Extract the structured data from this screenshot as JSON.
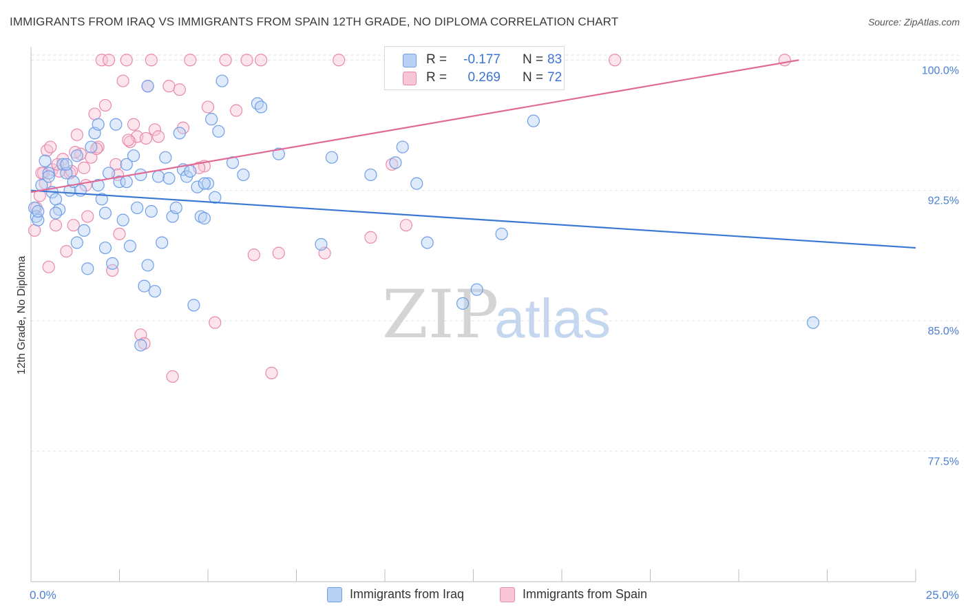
{
  "header": {
    "title": "IMMIGRANTS FROM IRAQ VS IMMIGRANTS FROM SPAIN 12TH GRADE, NO DIPLOMA CORRELATION CHART",
    "source": "Source: ZipAtlas.com"
  },
  "legend": {
    "r_label": "R =",
    "n_label": "N =",
    "rows": [
      {
        "r": "-0.177",
        "n": "83",
        "color": "#6e9ee8",
        "fill": "#b9d0f5"
      },
      {
        "r": "0.269",
        "n": "72",
        "color": "#e88aaa",
        "fill": "#f9c6d7"
      }
    ]
  },
  "watermark": {
    "zip": "ZIP",
    "atlas": "atlas"
  },
  "colors": {
    "iraq_line": "#3a78d4",
    "spain_line": "#e06a93",
    "iraq_point": "#6e9ee8",
    "spain_point": "#e88aaa"
  },
  "chart_data": {
    "type": "scatter",
    "title": "IMMIGRANTS FROM IRAQ VS IMMIGRANTS FROM SPAIN 12TH GRADE, NO DIPLOMA CORRELATION CHART",
    "xlabel": "",
    "ylabel": "12th Grade, No Diploma",
    "xlim": [
      0,
      25
    ],
    "ylim": [
      70.0,
      101.0
    ],
    "x_tick_labels": [
      "0.0%",
      "25.0%"
    ],
    "y_ticks": [
      100.0,
      92.5,
      85.0,
      77.5
    ],
    "y_tick_labels": [
      "100.0%",
      "92.5%",
      "85.0%",
      "77.5%"
    ],
    "grid": true,
    "legend_position": "bottom",
    "series": [
      {
        "name": "Immigrants from Iraq",
        "trend": {
          "x": [
            0,
            25
          ],
          "y": [
            92.5,
            89.2
          ]
        },
        "points": [
          [
            0.1,
            91.5
          ],
          [
            0.15,
            91.0
          ],
          [
            0.2,
            90.8
          ],
          [
            0.3,
            92.8
          ],
          [
            0.4,
            94.2
          ],
          [
            0.5,
            93.5
          ],
          [
            0.6,
            92.4
          ],
          [
            0.7,
            92.0
          ],
          [
            0.8,
            91.4
          ],
          [
            0.9,
            94.0
          ],
          [
            1.0,
            93.5
          ],
          [
            1.1,
            92.5
          ],
          [
            1.2,
            93.0
          ],
          [
            1.3,
            94.5
          ],
          [
            1.4,
            92.5
          ],
          [
            1.5,
            90.2
          ],
          [
            1.6,
            88.0
          ],
          [
            1.7,
            95.0
          ],
          [
            1.8,
            95.8
          ],
          [
            1.9,
            92.8
          ],
          [
            2.0,
            92.0
          ],
          [
            2.1,
            89.2
          ],
          [
            2.2,
            93.5
          ],
          [
            2.3,
            88.3
          ],
          [
            2.4,
            96.3
          ],
          [
            2.5,
            93.0
          ],
          [
            2.6,
            90.8
          ],
          [
            2.7,
            94.0
          ],
          [
            2.8,
            89.3
          ],
          [
            2.9,
            94.5
          ],
          [
            3.0,
            91.5
          ],
          [
            3.1,
            93.4
          ],
          [
            3.2,
            87.0
          ],
          [
            3.3,
            88.2
          ],
          [
            3.4,
            91.3
          ],
          [
            3.5,
            86.7
          ],
          [
            3.6,
            93.3
          ],
          [
            3.7,
            89.5
          ],
          [
            3.8,
            94.4
          ],
          [
            3.9,
            93.2
          ],
          [
            4.0,
            91.0
          ],
          [
            4.1,
            91.5
          ],
          [
            4.2,
            95.8
          ],
          [
            4.3,
            93.7
          ],
          [
            4.4,
            93.3
          ],
          [
            4.5,
            93.6
          ],
          [
            4.6,
            85.9
          ],
          [
            4.7,
            92.7
          ],
          [
            4.8,
            91.0
          ],
          [
            4.9,
            90.9
          ],
          [
            5.0,
            92.9
          ],
          [
            5.1,
            96.6
          ],
          [
            5.2,
            92.1
          ],
          [
            5.3,
            95.9
          ],
          [
            5.4,
            98.8
          ],
          [
            5.7,
            94.1
          ],
          [
            6.0,
            93.4
          ],
          [
            6.4,
            97.5
          ],
          [
            7.0,
            94.6
          ],
          [
            8.2,
            89.4
          ],
          [
            8.5,
            94.4
          ],
          [
            9.6,
            93.4
          ],
          [
            10.3,
            94.1
          ],
          [
            10.5,
            95.0
          ],
          [
            10.9,
            92.9
          ],
          [
            11.2,
            89.5
          ],
          [
            12.2,
            86.0
          ],
          [
            12.6,
            86.8
          ],
          [
            13.3,
            90.0
          ],
          [
            14.2,
            96.5
          ],
          [
            22.1,
            84.9
          ],
          [
            3.1,
            83.6
          ],
          [
            1.9,
            96.3
          ],
          [
            4.9,
            92.9
          ],
          [
            0.5,
            93.3
          ],
          [
            1.0,
            94.0
          ],
          [
            2.7,
            93.0
          ],
          [
            1.3,
            89.5
          ],
          [
            2.1,
            91.2
          ],
          [
            0.7,
            91.2
          ],
          [
            6.5,
            97.3
          ],
          [
            0.2,
            91.3
          ],
          [
            3.3,
            98.5
          ]
        ]
      },
      {
        "name": "Immigrants from Spain",
        "trend": {
          "x": [
            0,
            21.7
          ],
          "y": [
            92.4,
            100.0
          ]
        },
        "points": [
          [
            0.1,
            90.2
          ],
          [
            0.15,
            91.5
          ],
          [
            0.25,
            92.2
          ],
          [
            0.35,
            93.5
          ],
          [
            0.45,
            94.8
          ],
          [
            0.5,
            88.1
          ],
          [
            0.6,
            93.7
          ],
          [
            0.7,
            90.5
          ],
          [
            0.8,
            93.6
          ],
          [
            0.9,
            94.3
          ],
          [
            1.0,
            89.0
          ],
          [
            1.1,
            93.5
          ],
          [
            1.2,
            90.5
          ],
          [
            1.3,
            95.7
          ],
          [
            1.4,
            94.6
          ],
          [
            1.5,
            93.8
          ],
          [
            1.6,
            91.0
          ],
          [
            1.7,
            94.4
          ],
          [
            1.8,
            96.9
          ],
          [
            1.9,
            95.0
          ],
          [
            2.0,
            100.0
          ],
          [
            2.1,
            97.4
          ],
          [
            2.2,
            100.0
          ],
          [
            2.3,
            87.9
          ],
          [
            2.4,
            94.0
          ],
          [
            2.5,
            90.0
          ],
          [
            2.6,
            98.8
          ],
          [
            2.7,
            100.0
          ],
          [
            2.8,
            95.3
          ],
          [
            2.9,
            96.3
          ],
          [
            3.0,
            95.6
          ],
          [
            3.1,
            84.2
          ],
          [
            3.2,
            83.7
          ],
          [
            3.3,
            98.5
          ],
          [
            3.4,
            100.0
          ],
          [
            3.5,
            96.0
          ],
          [
            3.6,
            95.6
          ],
          [
            3.9,
            98.5
          ],
          [
            4.0,
            81.8
          ],
          [
            4.2,
            98.3
          ],
          [
            4.3,
            96.1
          ],
          [
            4.5,
            100.0
          ],
          [
            4.9,
            93.9
          ],
          [
            5.2,
            84.9
          ],
          [
            5.5,
            100.0
          ],
          [
            5.8,
            97.1
          ],
          [
            6.1,
            100.0
          ],
          [
            6.3,
            88.8
          ],
          [
            6.5,
            100.0
          ],
          [
            6.8,
            82.0
          ],
          [
            7.0,
            88.9
          ],
          [
            8.3,
            88.9
          ],
          [
            8.7,
            100.0
          ],
          [
            9.6,
            89.8
          ],
          [
            10.2,
            94.0
          ],
          [
            10.6,
            90.5
          ],
          [
            11.2,
            100.0
          ],
          [
            16.5,
            100.0
          ],
          [
            21.3,
            100.0
          ],
          [
            0.3,
            93.5
          ],
          [
            0.55,
            95.0
          ],
          [
            1.15,
            93.6
          ],
          [
            1.55,
            92.8
          ],
          [
            2.45,
            93.4
          ],
          [
            0.4,
            92.9
          ],
          [
            1.85,
            94.9
          ],
          [
            2.75,
            95.4
          ],
          [
            3.25,
            95.5
          ],
          [
            4.75,
            93.8
          ],
          [
            0.75,
            94.0
          ],
          [
            1.25,
            94.7
          ],
          [
            5.0,
            97.3
          ]
        ]
      }
    ]
  },
  "bottom_legend": [
    {
      "label": "Immigrants from Iraq"
    },
    {
      "label": "Immigrants from Spain"
    }
  ]
}
